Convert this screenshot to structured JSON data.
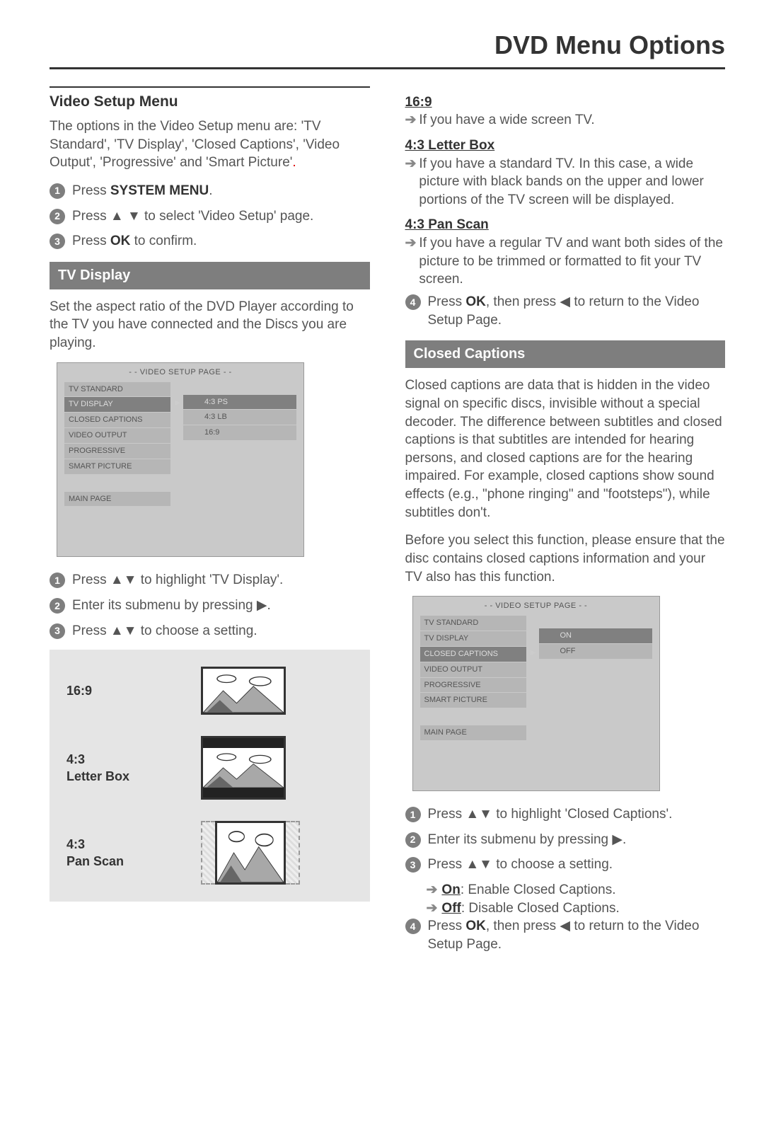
{
  "page_title": "DVD Menu Options",
  "left": {
    "section_header": "Video Setup Menu",
    "intro": "The options in the Video Setup menu are: 'TV Standard', 'TV Display', 'Closed Captions', 'Video Output', 'Progressive' and 'Smart Picture'",
    "steps_top": [
      {
        "n": "1",
        "pre": "Press ",
        "bold": "SYSTEM MENU",
        "post": "."
      },
      {
        "n": "2",
        "pre": "Press ",
        "icons": "▲ ▼",
        "post": " to select 'Video Setup' page."
      },
      {
        "n": "3",
        "pre": "Press ",
        "bold": "OK",
        "post": " to confirm."
      }
    ],
    "sub1_bar": "TV Display",
    "sub1_para": "Set the aspect ratio of the DVD Player according to the TV you have connected and the Discs you are playing.",
    "osd1": {
      "title": "- - VIDEO SETUP PAGE - -",
      "items": [
        "TV STANDARD",
        "TV DISPLAY",
        "CLOSED CAPTIONS",
        "VIDEO OUTPUT",
        "PROGRESSIVE",
        "SMART PICTURE"
      ],
      "selected_index": 1,
      "opts": [
        "4:3 PS",
        "4:3 LB",
        "16:9"
      ],
      "opt_selected_index": 0,
      "main_page": "MAIN PAGE"
    },
    "steps_mid": [
      {
        "n": "1",
        "pre": "Press ",
        "icons": "▲▼",
        "post": " to highlight 'TV Display'."
      },
      {
        "n": "2",
        "pre": "Enter its submenu by pressing ",
        "icons": "▶",
        "post": "."
      },
      {
        "n": "3",
        "pre": "Press ",
        "icons": "▲▼",
        "post": " to choose a setting."
      }
    ],
    "ratios": [
      {
        "label": "16:9",
        "kind": "169"
      },
      {
        "label": "4:3\nLetter Box",
        "kind": "43lb"
      },
      {
        "label": "4:3\nPan Scan",
        "kind": "43ps"
      }
    ]
  },
  "right": {
    "defs": [
      {
        "hdr": "16:9",
        "body": "If you have a wide screen TV."
      },
      {
        "hdr": "4:3 Letter Box",
        "body": "If you have a standard TV. In this case, a wide picture with black bands on the upper and lower portions of the TV screen will be displayed."
      },
      {
        "hdr": "4:3 Pan Scan",
        "body": "If you have a regular TV and want both sides of the picture to be trimmed or formatted to fit your TV screen."
      }
    ],
    "step4": {
      "n": "4",
      "pre": "Press ",
      "bold": "OK",
      "mid": ", then press ",
      "icons": "◀",
      "post": " to return to the Video Setup Page."
    },
    "cc_bar": "Closed Captions",
    "cc_para1": "Closed captions are data that is hidden in the video signal on specific discs, invisible without a special decoder. The difference between subtitles and closed captions is that subtitles are intended for hearing persons, and closed captions are for the hearing impaired. For example, closed captions show sound effects (e.g., \"phone ringing\" and \"footsteps\"), while subtitles don't.",
    "cc_para2": "Before you select this function, please ensure that the disc contains closed captions information and your TV also has this function.",
    "osd2": {
      "title": "- - VIDEO SETUP PAGE - -",
      "items": [
        "TV STANDARD",
        "TV DISPLAY",
        "CLOSED CAPTIONS",
        "VIDEO OUTPUT",
        "PROGRESSIVE",
        "SMART PICTURE"
      ],
      "selected_index": 2,
      "opts": [
        "ON",
        "OFF"
      ],
      "opt_selected_index": 0,
      "main_page": "MAIN PAGE"
    },
    "cc_steps": [
      {
        "n": "1",
        "pre": "Press ",
        "icons": "▲▼",
        "post": " to highlight 'Closed Captions'."
      },
      {
        "n": "2",
        "pre": "Enter its submenu by pressing ",
        "icons": "▶",
        "post": "."
      },
      {
        "n": "3",
        "pre": "Press ",
        "icons": "▲▼",
        "post": " to choose a setting."
      }
    ],
    "cc_sub": [
      {
        "u": "On",
        "rest": ": Enable Closed Captions."
      },
      {
        "u": "Off",
        "rest": ": Disable Closed Captions."
      }
    ],
    "cc_step4": {
      "n": "4",
      "pre": "Press ",
      "bold": "OK",
      "mid": ", then press ",
      "icons": "◀",
      "post": " to return to the Video Setup Page."
    }
  }
}
